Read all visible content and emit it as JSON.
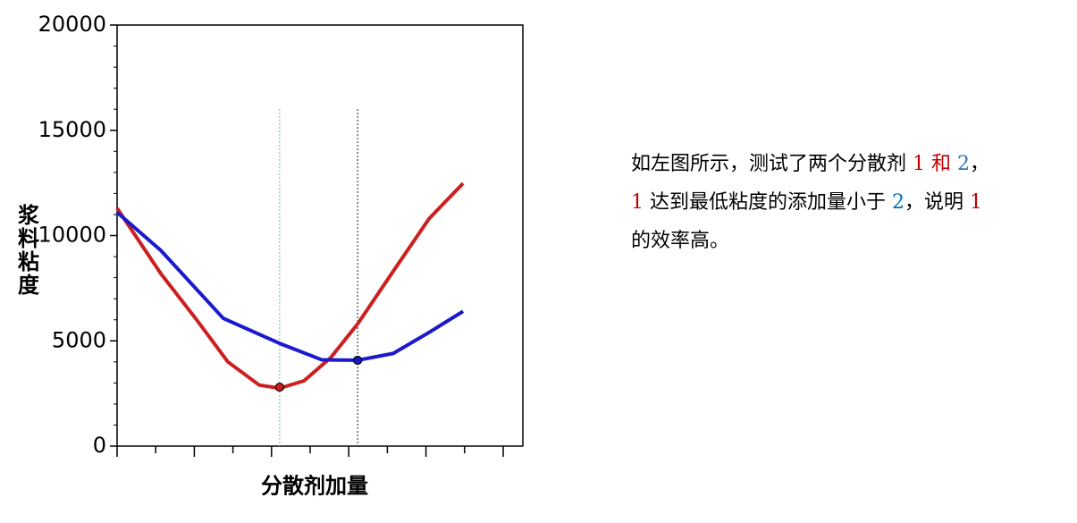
{
  "chart_data": {
    "type": "line",
    "ylabel": "浆料粘度",
    "xlabel": "分散剂加量",
    "xlim": [
      0,
      10.5
    ],
    "xticks": [
      0,
      1,
      2,
      3,
      4,
      5,
      6,
      7,
      8,
      9,
      10
    ],
    "ylim": [
      0,
      20000
    ],
    "yticks": [
      0,
      5000,
      10000,
      15000,
      20000
    ],
    "series": [
      {
        "color": "#cc1f1f",
        "x": [
          0,
          1.13,
          2.06,
          2.87,
          3.68,
          4.21,
          4.84,
          5.53,
          6.23,
          7.15,
          8.08,
          8.96
        ],
        "values": [
          11300,
          8200,
          6000,
          4000,
          2900,
          2750,
          3100,
          4200,
          5800,
          8300,
          10800,
          12480
        ],
        "min_x": 4.21,
        "min_value": 2800
      },
      {
        "color": "#1a1acc",
        "x": [
          0,
          1.13,
          2.75,
          4.21,
          5.3,
          6.23,
          7.15,
          8.08,
          8.96
        ],
        "values": [
          11100,
          9300,
          6070,
          4880,
          4100,
          4080,
          4400,
          5400,
          6400
        ],
        "min_x": 6.23,
        "min_value": 4076
      }
    ]
  },
  "note": {
    "lines": [
      [
        {
          "text": "如左图所示，测试了两个分散剂 ",
          "color": "#000000"
        },
        {
          "text": "1 和",
          "color": "#c00000"
        },
        {
          "text": " ",
          "color": "#000000"
        },
        {
          "text": "2",
          "color": "#2e75b6"
        },
        {
          "text": "，",
          "color": "#000000"
        }
      ],
      [
        {
          "text": "1",
          "color": "#c00000"
        },
        {
          "text": " 达到最低粘度的添加量小于 ",
          "color": "#000000"
        },
        {
          "text": "2",
          "color": "#0070c0"
        },
        {
          "text": "，说明 ",
          "color": "#000000"
        },
        {
          "text": "1",
          "color": "#c00000"
        }
      ],
      [
        {
          "text": "的效率高。",
          "color": "#000000"
        }
      ]
    ]
  }
}
